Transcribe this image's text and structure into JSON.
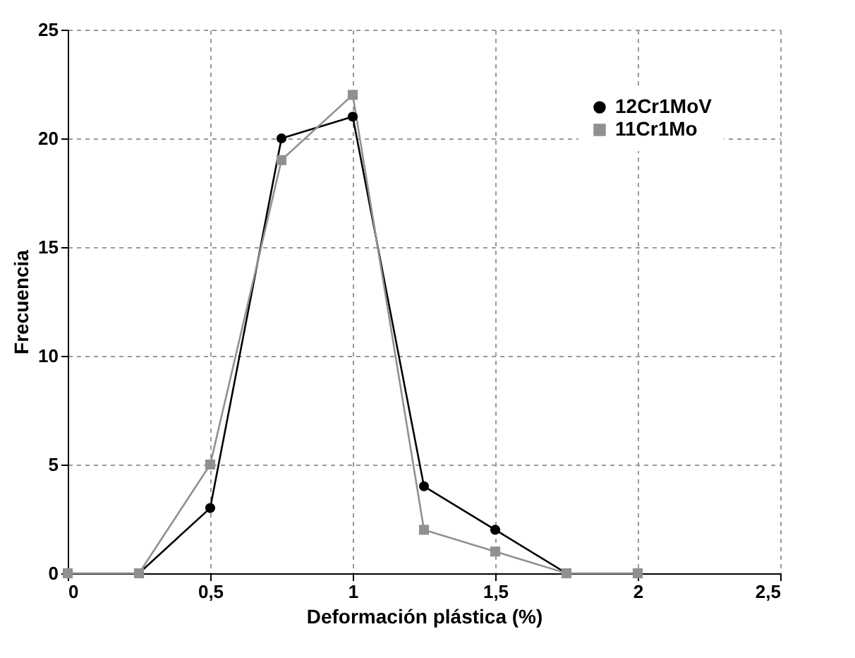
{
  "chart_data": {
    "type": "line",
    "xlabel": "Deformación plástica (%)",
    "ylabel": "Frecuencia",
    "xlim": [
      0,
      2.5
    ],
    "xticks": [
      0,
      {
        "value": 0.5,
        "label": "0,5"
      },
      1,
      {
        "value": 1.5,
        "label": "1,5"
      },
      2,
      {
        "value": 2.5,
        "label": "2,5"
      }
    ],
    "ylim": [
      0,
      25
    ],
    "yticks": [
      0,
      5,
      10,
      15,
      20,
      25
    ],
    "grid": true,
    "legend": "top right",
    "series": [
      {
        "name": "12Cr1MoV",
        "color": "#000000",
        "marker": "circle",
        "x": [
          0.25,
          0.5,
          0.75,
          1,
          1.25,
          1.5,
          1.75
        ],
        "values": [
          0,
          3,
          20,
          21,
          4,
          2,
          0
        ]
      },
      {
        "name": "11Cr1Mo",
        "color": "#909090",
        "marker": "square",
        "x": [
          0,
          0.25,
          0.5,
          0.75,
          1,
          1.25,
          1.5,
          1.75,
          2
        ],
        "values": [
          0,
          0,
          5,
          19,
          22,
          2,
          1,
          0,
          0
        ]
      }
    ]
  }
}
